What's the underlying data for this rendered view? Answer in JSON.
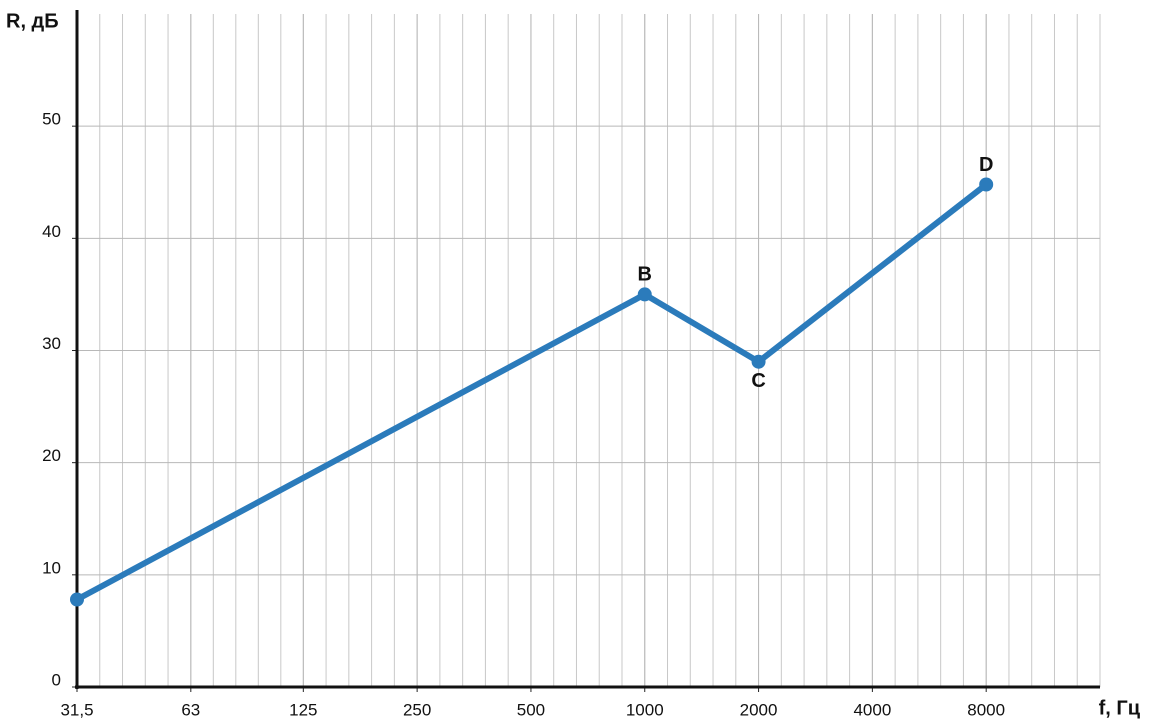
{
  "chart_data": {
    "type": "line",
    "y_label": "R, дБ",
    "x_label": "f, Гц",
    "x": [
      31.5,
      1000,
      2000,
      8000
    ],
    "series": [
      {
        "color": "#2b7bbb",
        "values": [
          7.8,
          35,
          29,
          44.8
        ],
        "point_labels": [
          null,
          "B",
          "C",
          "D"
        ]
      }
    ],
    "xscale": "log",
    "xlim": [
      31.5,
      16000
    ],
    "xticks": [
      {
        "value": 31.5,
        "label": "31,5"
      },
      63,
      125,
      250,
      500,
      1000,
      2000,
      4000,
      8000
    ],
    "ylim": [
      0,
      60
    ],
    "yticks": [
      0,
      10,
      20,
      30,
      40,
      50
    ],
    "grid": true,
    "minor_x_divisions": 5
  }
}
